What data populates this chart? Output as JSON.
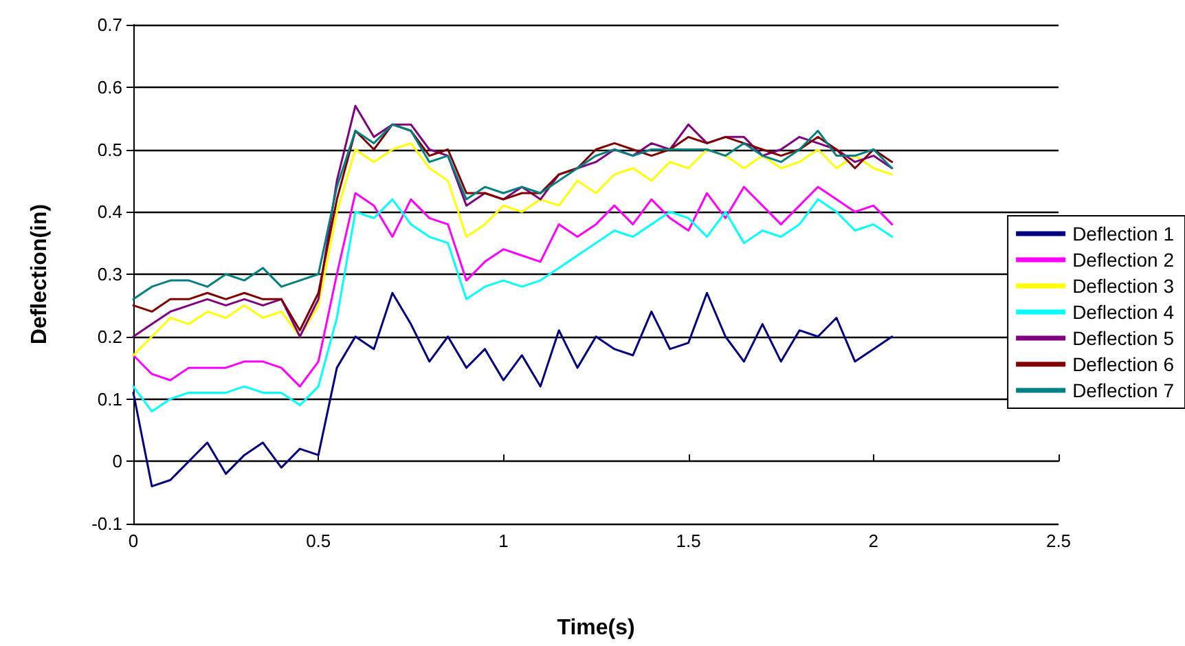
{
  "chart_data": {
    "type": "line",
    "xlabel": "Time(s)",
    "ylabel": "Deflection(in)",
    "x": [
      0,
      0.05,
      0.1,
      0.15,
      0.2,
      0.25,
      0.3,
      0.35,
      0.4,
      0.45,
      0.5,
      0.55,
      0.6,
      0.65,
      0.7,
      0.75,
      0.8,
      0.85,
      0.9,
      0.95,
      1.0,
      1.05,
      1.1,
      1.15,
      1.2,
      1.25,
      1.3,
      1.35,
      1.4,
      1.45,
      1.5,
      1.55,
      1.6,
      1.65,
      1.7,
      1.75,
      1.8,
      1.85,
      1.9,
      1.95,
      2.0,
      2.05
    ],
    "xlim": [
      0,
      2.5
    ],
    "xticks": [
      0,
      0.5,
      1,
      1.5,
      2,
      2.5
    ],
    "ylim": [
      -0.1,
      0.7
    ],
    "yticks": [
      -0.1,
      0,
      0.1,
      0.2,
      0.3,
      0.4,
      0.5,
      0.6,
      0.7
    ],
    "grid": "y",
    "legend": "right",
    "marker": "none",
    "line_style": "solid",
    "series": [
      {
        "name": "Deflection 1",
        "color": "#000080",
        "values": [
          0.11,
          -0.04,
          -0.03,
          0.0,
          0.03,
          -0.02,
          0.01,
          0.03,
          -0.01,
          0.02,
          0.01,
          0.15,
          0.2,
          0.18,
          0.27,
          0.22,
          0.16,
          0.2,
          0.15,
          0.18,
          0.13,
          0.17,
          0.12,
          0.21,
          0.15,
          0.2,
          0.18,
          0.17,
          0.24,
          0.18,
          0.19,
          0.27,
          0.2,
          0.16,
          0.22,
          0.16,
          0.21,
          0.2,
          0.23,
          0.16,
          0.18,
          0.2
        ]
      },
      {
        "name": "Deflection 2",
        "color": "#ff00ff",
        "values": [
          0.17,
          0.14,
          0.13,
          0.15,
          0.15,
          0.15,
          0.16,
          0.16,
          0.15,
          0.12,
          0.16,
          0.3,
          0.43,
          0.41,
          0.36,
          0.42,
          0.39,
          0.38,
          0.29,
          0.32,
          0.34,
          0.33,
          0.32,
          0.38,
          0.36,
          0.38,
          0.41,
          0.38,
          0.42,
          0.39,
          0.37,
          0.43,
          0.39,
          0.44,
          0.41,
          0.38,
          0.41,
          0.44,
          0.42,
          0.4,
          0.41,
          0.38
        ]
      },
      {
        "name": "Deflection 3",
        "color": "#ffff00",
        "values": [
          0.17,
          0.2,
          0.23,
          0.22,
          0.24,
          0.23,
          0.25,
          0.23,
          0.24,
          0.2,
          0.25,
          0.4,
          0.5,
          0.48,
          0.5,
          0.51,
          0.47,
          0.45,
          0.36,
          0.38,
          0.41,
          0.4,
          0.42,
          0.41,
          0.45,
          0.43,
          0.46,
          0.47,
          0.45,
          0.48,
          0.47,
          0.5,
          0.49,
          0.47,
          0.49,
          0.47,
          0.48,
          0.5,
          0.47,
          0.49,
          0.47,
          0.46
        ]
      },
      {
        "name": "Deflection 4",
        "color": "#00ffff",
        "values": [
          0.12,
          0.08,
          0.1,
          0.11,
          0.11,
          0.11,
          0.12,
          0.11,
          0.11,
          0.09,
          0.12,
          0.23,
          0.4,
          0.39,
          0.42,
          0.38,
          0.36,
          0.35,
          0.26,
          0.28,
          0.29,
          0.28,
          0.29,
          0.31,
          0.33,
          0.35,
          0.37,
          0.36,
          0.38,
          0.4,
          0.39,
          0.36,
          0.4,
          0.35,
          0.37,
          0.36,
          0.38,
          0.42,
          0.4,
          0.37,
          0.38,
          0.36
        ]
      },
      {
        "name": "Deflection 5",
        "color": "#800080",
        "values": [
          0.2,
          0.22,
          0.24,
          0.25,
          0.26,
          0.25,
          0.26,
          0.25,
          0.26,
          0.2,
          0.26,
          0.45,
          0.57,
          0.52,
          0.54,
          0.54,
          0.5,
          0.49,
          0.41,
          0.43,
          0.42,
          0.44,
          0.42,
          0.46,
          0.47,
          0.48,
          0.5,
          0.49,
          0.51,
          0.5,
          0.54,
          0.51,
          0.52,
          0.52,
          0.49,
          0.5,
          0.52,
          0.51,
          0.5,
          0.48,
          0.49,
          0.47
        ]
      },
      {
        "name": "Deflection 6",
        "color": "#800000",
        "values": [
          0.25,
          0.24,
          0.26,
          0.26,
          0.27,
          0.26,
          0.27,
          0.26,
          0.26,
          0.21,
          0.27,
          0.42,
          0.53,
          0.5,
          0.54,
          0.53,
          0.49,
          0.5,
          0.43,
          0.43,
          0.42,
          0.43,
          0.43,
          0.46,
          0.47,
          0.5,
          0.51,
          0.5,
          0.49,
          0.5,
          0.52,
          0.51,
          0.52,
          0.51,
          0.5,
          0.49,
          0.5,
          0.52,
          0.5,
          0.47,
          0.5,
          0.48
        ]
      },
      {
        "name": "Deflection 7",
        "color": "#008080",
        "values": [
          0.26,
          0.28,
          0.29,
          0.29,
          0.28,
          0.3,
          0.29,
          0.31,
          0.28,
          0.29,
          0.3,
          0.44,
          0.53,
          0.51,
          0.54,
          0.53,
          0.48,
          0.49,
          0.42,
          0.44,
          0.43,
          0.44,
          0.43,
          0.45,
          0.47,
          0.49,
          0.5,
          0.49,
          0.5,
          0.5,
          0.5,
          0.5,
          0.49,
          0.51,
          0.49,
          0.48,
          0.5,
          0.53,
          0.49,
          0.49,
          0.5,
          0.47
        ]
      }
    ]
  }
}
